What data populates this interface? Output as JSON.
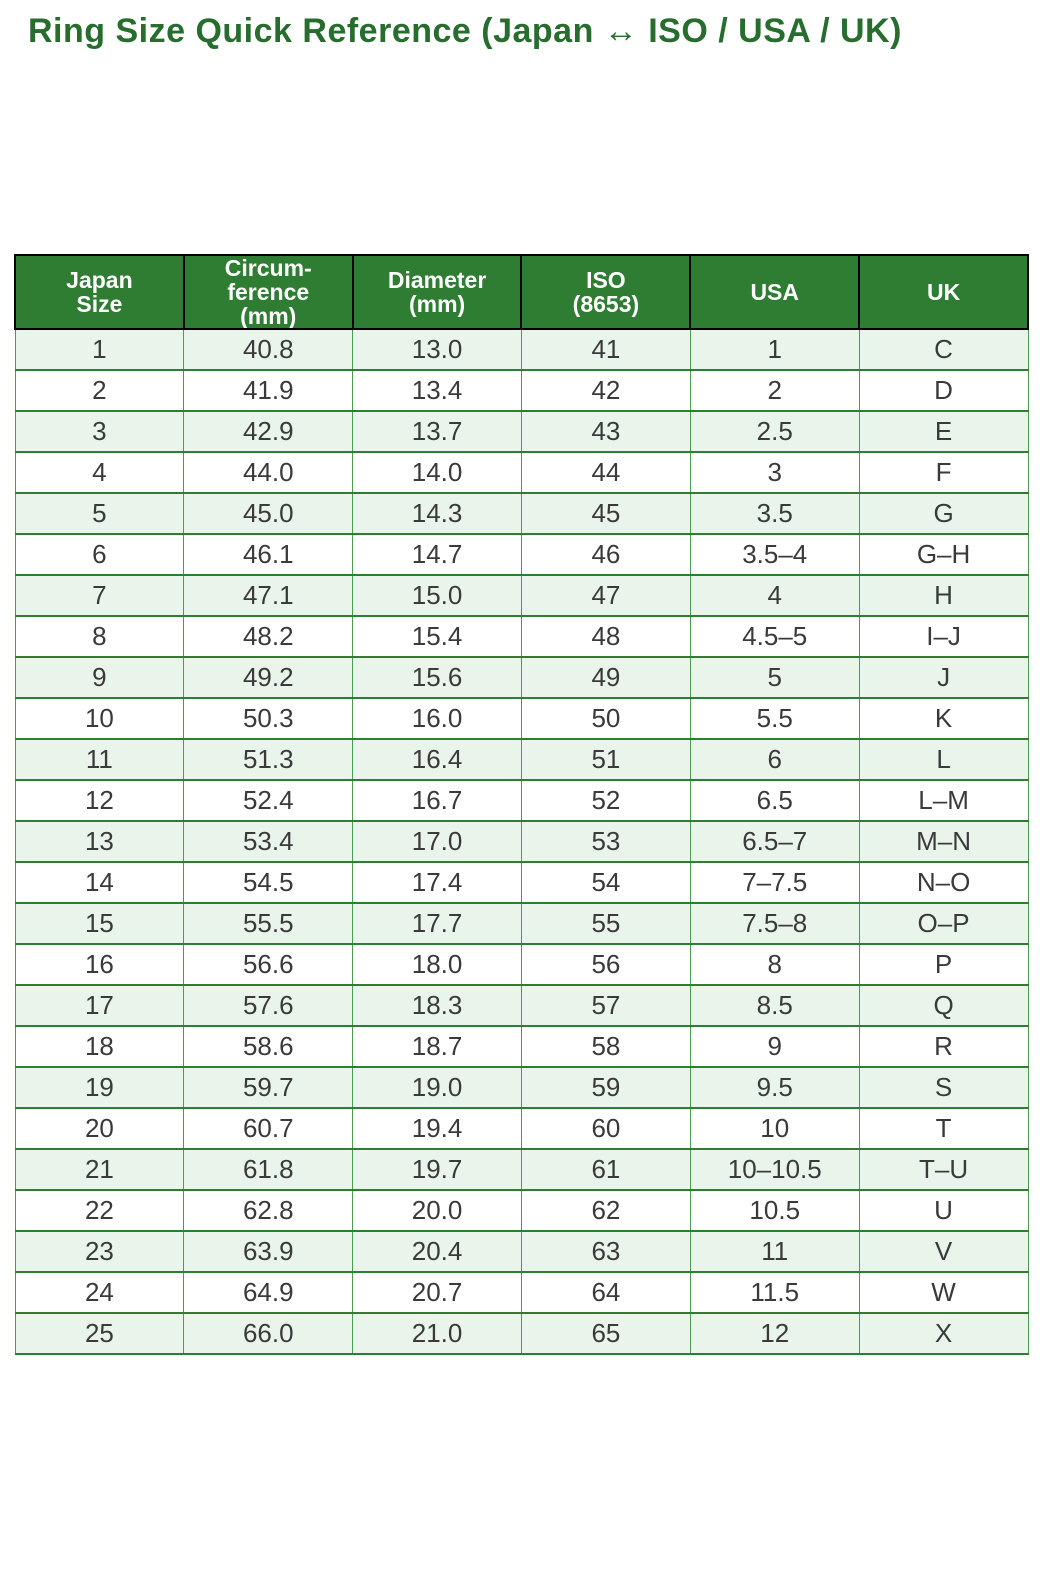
{
  "title": "Ring Size Quick Reference (Japan ↔ ISO / USA / UK)",
  "colors": {
    "title_color": "#276d2e",
    "header_bg": "#2e7d32",
    "header_text": "#ffffff",
    "header_border": "#000000",
    "row_alt_bg": "#e9f5ea",
    "row_bg": "#ffffff",
    "grid_green": "#4c9950",
    "row_divider": "#2e7d32",
    "body_text": "#3a3a3a"
  },
  "table": {
    "columns": [
      {
        "key": "japan-size",
        "label": "Japan\nSize"
      },
      {
        "key": "circumference-mm",
        "label": "Circum-\nference\n(mm)"
      },
      {
        "key": "diameter-mm",
        "label": "Diameter\n(mm)"
      },
      {
        "key": "iso-8653",
        "label": "ISO\n(8653)"
      },
      {
        "key": "usa",
        "label": "USA"
      },
      {
        "key": "uk",
        "label": "UK"
      }
    ],
    "rows": [
      [
        "1",
        "40.8",
        "13.0",
        "41",
        "1",
        "C"
      ],
      [
        "2",
        "41.9",
        "13.4",
        "42",
        "2",
        "D"
      ],
      [
        "3",
        "42.9",
        "13.7",
        "43",
        "2.5",
        "E"
      ],
      [
        "4",
        "44.0",
        "14.0",
        "44",
        "3",
        "F"
      ],
      [
        "5",
        "45.0",
        "14.3",
        "45",
        "3.5",
        "G"
      ],
      [
        "6",
        "46.1",
        "14.7",
        "46",
        "3.5–4",
        "G–H"
      ],
      [
        "7",
        "47.1",
        "15.0",
        "47",
        "4",
        "H"
      ],
      [
        "8",
        "48.2",
        "15.4",
        "48",
        "4.5–5",
        "I–J"
      ],
      [
        "9",
        "49.2",
        "15.6",
        "49",
        "5",
        "J"
      ],
      [
        "10",
        "50.3",
        "16.0",
        "50",
        "5.5",
        "K"
      ],
      [
        "11",
        "51.3",
        "16.4",
        "51",
        "6",
        "L"
      ],
      [
        "12",
        "52.4",
        "16.7",
        "52",
        "6.5",
        "L–M"
      ],
      [
        "13",
        "53.4",
        "17.0",
        "53",
        "6.5–7",
        "M–N"
      ],
      [
        "14",
        "54.5",
        "17.4",
        "54",
        "7–7.5",
        "N–O"
      ],
      [
        "15",
        "55.5",
        "17.7",
        "55",
        "7.5–8",
        "O–P"
      ],
      [
        "16",
        "56.6",
        "18.0",
        "56",
        "8",
        "P"
      ],
      [
        "17",
        "57.6",
        "18.3",
        "57",
        "8.5",
        "Q"
      ],
      [
        "18",
        "58.6",
        "18.7",
        "58",
        "9",
        "R"
      ],
      [
        "19",
        "59.7",
        "19.0",
        "59",
        "9.5",
        "S"
      ],
      [
        "20",
        "60.7",
        "19.4",
        "60",
        "10",
        "T"
      ],
      [
        "21",
        "61.8",
        "19.7",
        "61",
        "10–10.5",
        "T–U"
      ],
      [
        "22",
        "62.8",
        "20.0",
        "62",
        "10.5",
        "U"
      ],
      [
        "23",
        "63.9",
        "20.4",
        "63",
        "11",
        "V"
      ],
      [
        "24",
        "64.9",
        "20.7",
        "64",
        "11.5",
        "W"
      ],
      [
        "25",
        "66.0",
        "21.0",
        "65",
        "12",
        "X"
      ]
    ]
  }
}
